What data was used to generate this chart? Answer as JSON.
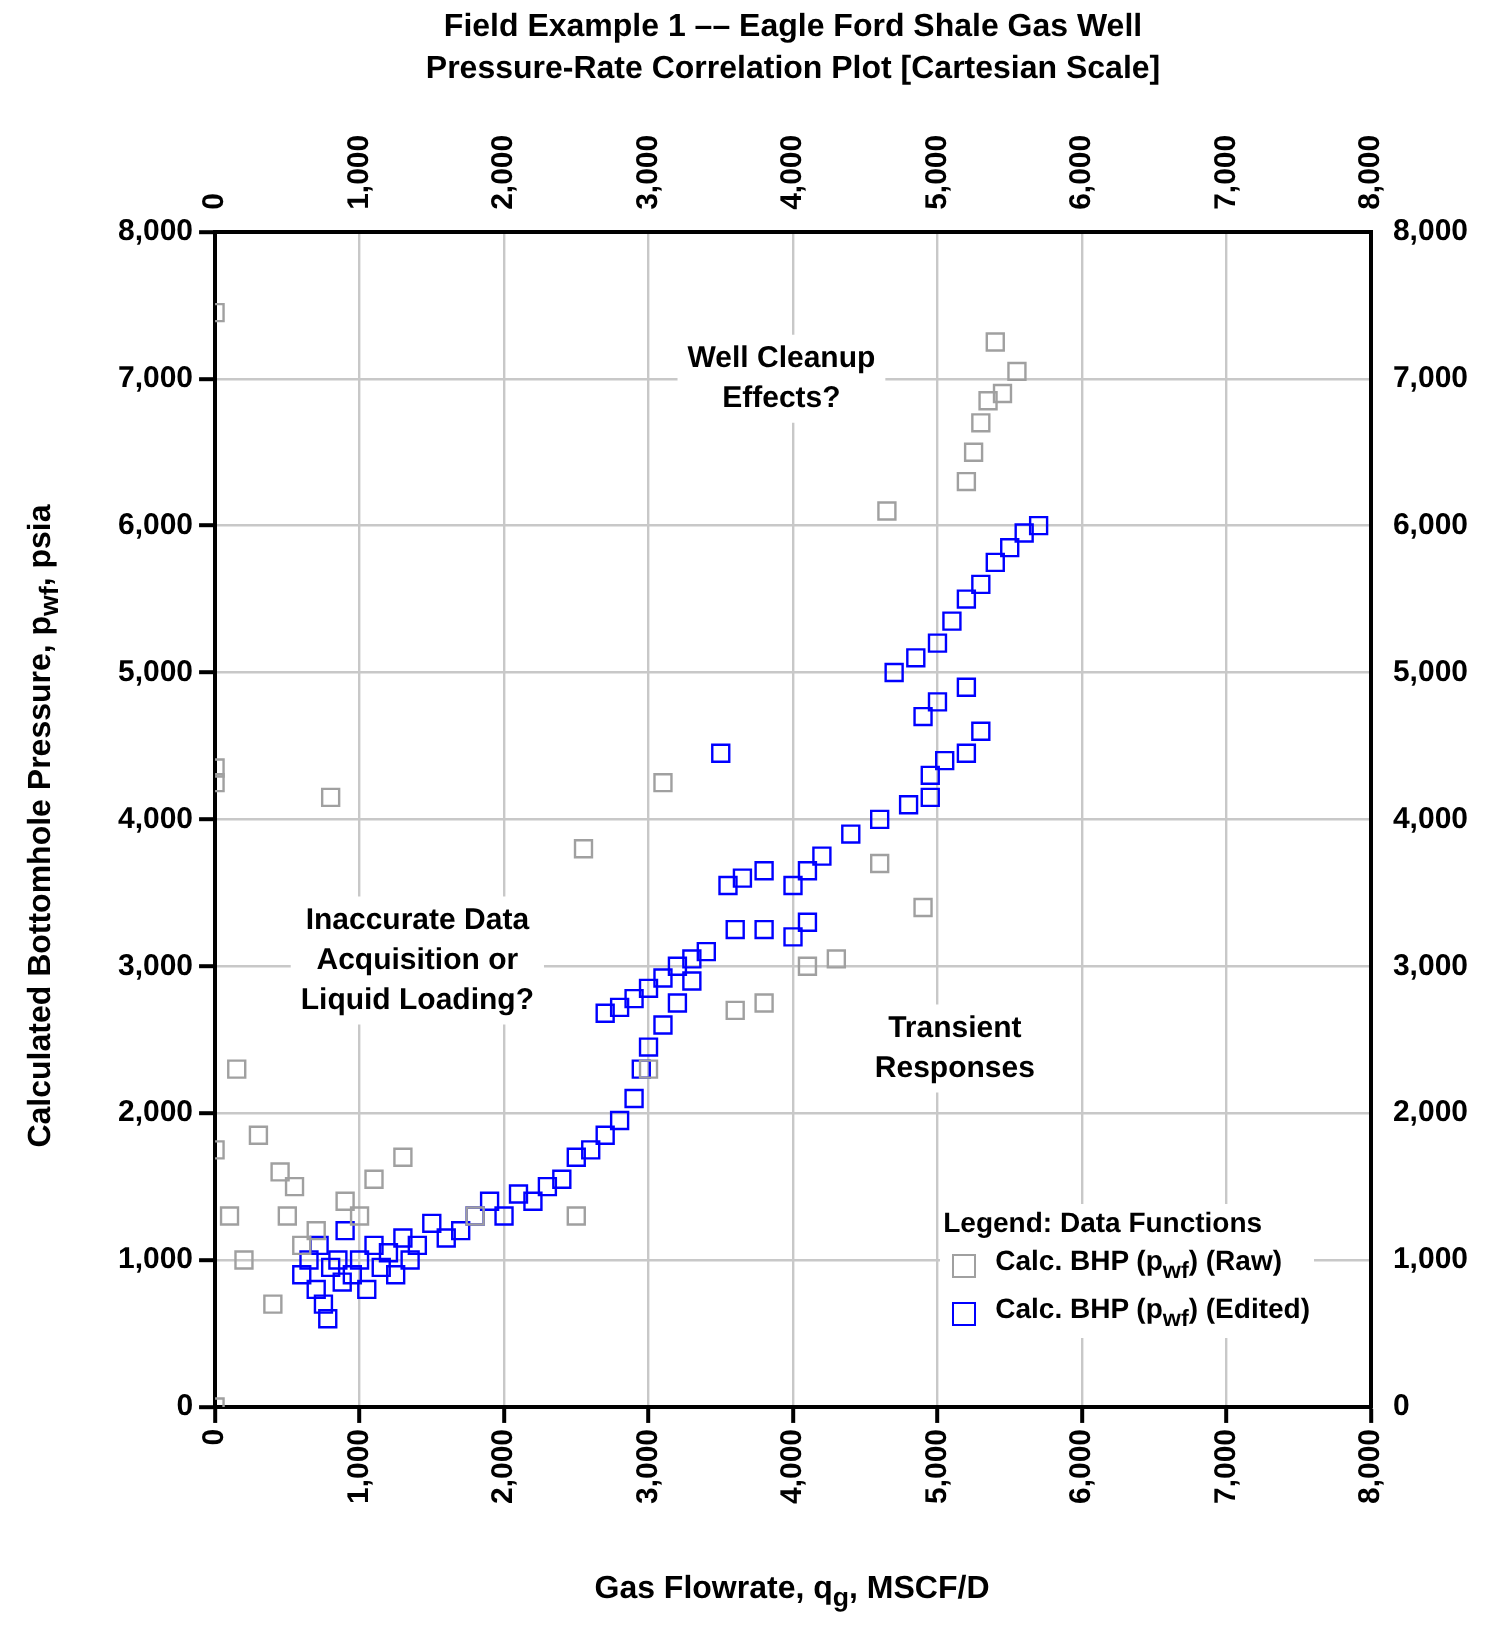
{
  "chart_data": {
    "type": "scatter",
    "title": "Field Example 1 –– Eagle Ford Shale Gas Well",
    "subtitle": "Pressure-Rate Correlation Plot [Cartesian Scale]",
    "xlabel": "Gas Flowrate, q$_{g}$, MSCF/D",
    "ylabel": "Calculated Bottomhole Pressure, p$_{wf}$, psia",
    "legend_title": "Legend: Data Functions",
    "legend": "bottom right",
    "grid": true,
    "marker": "square",
    "xlim": [
      0,
      8000
    ],
    "xticks": [
      0,
      {
        "value": 1000,
        "label": "1,000"
      },
      {
        "value": 2000,
        "label": "2,000"
      },
      {
        "value": 3000,
        "label": "3,000"
      },
      {
        "value": 4000,
        "label": "4,000"
      },
      {
        "value": 5000,
        "label": "5,000"
      },
      {
        "value": 6000,
        "label": "6,000"
      },
      {
        "value": 7000,
        "label": "7,000"
      },
      {
        "value": 8000,
        "label": "8,000"
      }
    ],
    "x2lim": [
      0,
      8000
    ],
    "x2ticks": [
      0,
      {
        "value": 1000,
        "label": "1,000"
      },
      {
        "value": 2000,
        "label": "2,000"
      },
      {
        "value": 3000,
        "label": "3,000"
      },
      {
        "value": 4000,
        "label": "4,000"
      },
      {
        "value": 5000,
        "label": "5,000"
      },
      {
        "value": 6000,
        "label": "6,000"
      },
      {
        "value": 7000,
        "label": "7,000"
      },
      {
        "value": 8000,
        "label": "8,000"
      }
    ],
    "ylim": [
      0,
      8000
    ],
    "yticks": [
      0,
      {
        "value": 1000,
        "label": "1,000"
      },
      {
        "value": 2000,
        "label": "2,000"
      },
      {
        "value": 3000,
        "label": "3,000"
      },
      {
        "value": 4000,
        "label": "4,000"
      },
      {
        "value": 5000,
        "label": "5,000"
      },
      {
        "value": 6000,
        "label": "6,000"
      },
      {
        "value": 7000,
        "label": "7,000"
      },
      {
        "value": 8000,
        "label": "8,000"
      }
    ],
    "y2lim": [
      0,
      8000
    ],
    "y2ticks": [
      0,
      {
        "value": 1000,
        "label": "1,000"
      },
      {
        "value": 2000,
        "label": "2,000"
      },
      {
        "value": 3000,
        "label": "3,000"
      },
      {
        "value": 4000,
        "label": "4,000"
      },
      {
        "value": 5000,
        "label": "5,000"
      },
      {
        "value": 6000,
        "label": "6,000"
      },
      {
        "value": 7000,
        "label": "7,000"
      },
      {
        "value": 8000,
        "label": "8,000"
      }
    ],
    "annotations": [
      "Well Cleanup\nEffects?",
      "Inaccurate Data\nAcquisition or\nLiquid Loading?",
      "Transient\nResponses"
    ],
    "series": [
      {
        "name": "Calc. BHP (p$_{wf}$) (Raw)",
        "color": "#a0a0a0",
        "x": [
          0,
          0,
          0,
          0,
          0,
          100,
          150,
          200,
          300,
          400,
          450,
          500,
          550,
          600,
          700,
          800,
          900,
          1000,
          1100,
          1300,
          1800,
          2500,
          2550,
          3000,
          3100,
          3600,
          3800,
          4100,
          4300,
          4600,
          4650,
          4900,
          5200,
          5250,
          5300,
          5350,
          5400,
          5450,
          5550
        ],
        "values": [
          7450,
          4350,
          4250,
          1750,
          0,
          1300,
          2300,
          1000,
          1850,
          700,
          1600,
          1300,
          1500,
          1100,
          1200,
          4150,
          1400,
          1300,
          1550,
          1700,
          1300,
          1300,
          3800,
          2300,
          4250,
          2700,
          2750,
          3000,
          3050,
          3700,
          6100,
          3400,
          6300,
          6500,
          6700,
          6850,
          7250,
          6900,
          7050
        ]
      },
      {
        "name": "Calc. BHP (p$_{wf}$) (Edited)",
        "color": "#0000ff",
        "x": [
          600,
          650,
          700,
          720,
          750,
          780,
          800,
          850,
          880,
          900,
          950,
          1000,
          1050,
          1100,
          1150,
          1200,
          1250,
          1300,
          1350,
          1400,
          1500,
          1600,
          1700,
          1800,
          1900,
          2000,
          2100,
          2200,
          2300,
          2400,
          2500,
          2600,
          2700,
          2800,
          2900,
          2950,
          3000,
          3100,
          3200,
          3300,
          2700,
          2800,
          2900,
          3000,
          3100,
          3200,
          3300,
          3400,
          3550,
          3650,
          3800,
          4000,
          4100,
          4200,
          4400,
          4600,
          4800,
          4950,
          3600,
          3800,
          4000,
          4100,
          4950,
          5050,
          5200,
          5300,
          4900,
          5000,
          5200,
          4700,
          4850,
          5000,
          5100,
          5200,
          5300,
          5400,
          5500,
          5600,
          5700,
          3500
        ],
        "values": [
          900,
          1000,
          800,
          1100,
          700,
          600,
          950,
          1000,
          850,
          1200,
          900,
          1000,
          800,
          1100,
          950,
          1050,
          900,
          1150,
          1000,
          1100,
          1250,
          1150,
          1200,
          1300,
          1400,
          1300,
          1450,
          1400,
          1500,
          1550,
          1700,
          1750,
          1850,
          1950,
          2100,
          2300,
          2450,
          2600,
          2750,
          2900,
          2680,
          2720,
          2780,
          2850,
          2920,
          3000,
          3050,
          3100,
          3550,
          3600,
          3650,
          3550,
          3650,
          3750,
          3900,
          4000,
          4100,
          4150,
          3250,
          3250,
          3200,
          3300,
          4300,
          4400,
          4450,
          4600,
          4700,
          4800,
          4900,
          5000,
          5100,
          5200,
          5350,
          5500,
          5600,
          5750,
          5850,
          5950,
          6000,
          4450
        ]
      }
    ]
  }
}
